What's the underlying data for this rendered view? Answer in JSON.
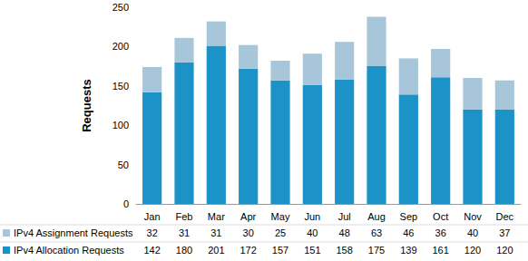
{
  "chart_data": {
    "type": "bar",
    "stacked": true,
    "grid": false,
    "legend": "bottom",
    "y_label": "Requests",
    "categories": [
      "Jan",
      "Feb",
      "Mar",
      "Apr",
      "May",
      "Jun",
      "Jul",
      "Aug",
      "Sep",
      "Oct",
      "Nov",
      "Dec"
    ],
    "series": [
      {
        "name": "IPv4 Allocation Requests",
        "color": "#1b92c8",
        "values": [
          142,
          180,
          201,
          172,
          157,
          151,
          158,
          175,
          139,
          161,
          120,
          120
        ]
      },
      {
        "name": "IPv4 Assignment Requests",
        "color": "#a7c6d9",
        "values": [
          32,
          31,
          31,
          30,
          25,
          40,
          48,
          63,
          46,
          36,
          40,
          37
        ]
      }
    ],
    "ylim": [
      0,
      250
    ],
    "yticks": [
      0,
      50,
      100,
      150,
      200,
      250
    ]
  }
}
